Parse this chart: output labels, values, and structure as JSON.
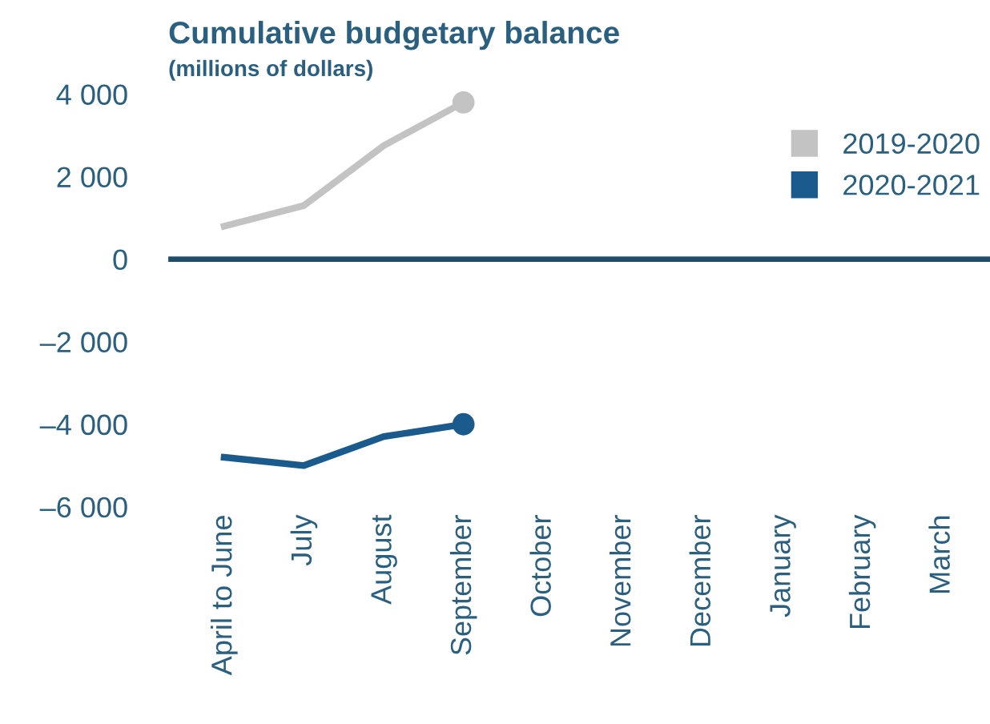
{
  "chart_data": {
    "type": "line",
    "title": "Cumulative budgetary balance",
    "subtitle": "(millions of dollars)",
    "categories": [
      "April to June",
      "July",
      "August",
      "September",
      "October",
      "November",
      "December",
      "January",
      "February",
      "March"
    ],
    "series": [
      {
        "name": "2019-2020",
        "color": "#c3c3c3",
        "values": [
          800,
          1300,
          2750,
          3800,
          null,
          null,
          null,
          null,
          null,
          null
        ]
      },
      {
        "name": "2020-2021",
        "color": "#1b5a8c",
        "values": [
          -4800,
          -5000,
          -4300,
          -4000,
          null,
          null,
          null,
          null,
          null,
          null
        ]
      }
    ],
    "ylim": [
      -6000,
      4000
    ],
    "yticks": [
      {
        "value": 4000,
        "label": "4 000"
      },
      {
        "value": 2000,
        "label": "2 000"
      },
      {
        "value": 0,
        "label": "0"
      },
      {
        "value": -2000,
        "label": "–2 000"
      },
      {
        "value": -4000,
        "label": "–4 000"
      },
      {
        "value": -6000,
        "label": "–6 000"
      }
    ],
    "ref_lines": [
      {
        "axis": "y",
        "value": 0,
        "color": "#1f4e6b"
      }
    ],
    "grid": false,
    "legend": "top right"
  }
}
